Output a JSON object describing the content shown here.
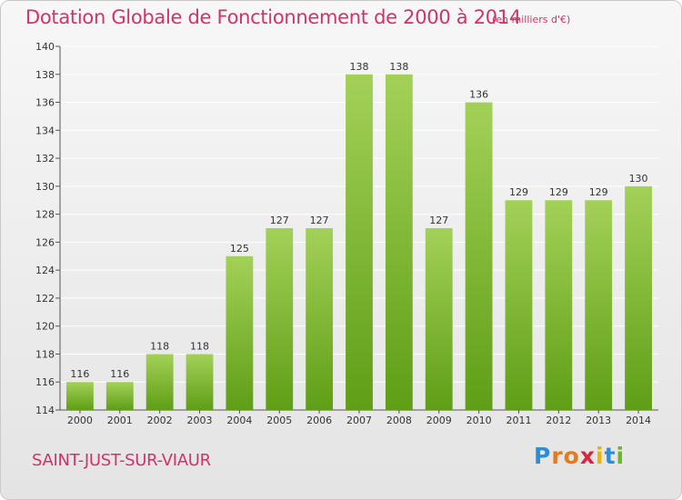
{
  "title": "Dotation Globale de Fonctionnement de 2000 à 2014",
  "subtitle": "(en milliers d'€)",
  "commune": "SAINT-JUST-SUR-VIAUR",
  "logo": {
    "letters": [
      "P",
      "r",
      "o",
      "x",
      "i",
      "t",
      "i"
    ],
    "colors": [
      "#2b8fd6",
      "#e8781e",
      "#e8781e",
      "#d6283c",
      "#f0b400",
      "#2b8fd6",
      "#6db52a"
    ]
  },
  "colors": {
    "bar_top": "#a3d158",
    "bar_bottom": "#5f9e16",
    "title": "#d0336b",
    "grid": "#ffffff"
  },
  "chart_data": {
    "type": "bar",
    "categories": [
      "2000",
      "2001",
      "2002",
      "2003",
      "2004",
      "2005",
      "2006",
      "2007",
      "2008",
      "2009",
      "2010",
      "2011",
      "2012",
      "2013",
      "2014"
    ],
    "values": [
      116,
      116,
      118,
      118,
      125,
      127,
      127,
      138,
      138,
      127,
      136,
      129,
      129,
      129,
      130
    ],
    "title": "Dotation Globale de Fonctionnement de 2000 à 2014",
    "subtitle": "(en milliers d'€)",
    "ylim": [
      114,
      140
    ],
    "yticks": [
      114,
      116,
      118,
      120,
      122,
      124,
      126,
      128,
      130,
      132,
      134,
      136,
      138,
      140
    ],
    "grid": true,
    "data_labels": true
  }
}
